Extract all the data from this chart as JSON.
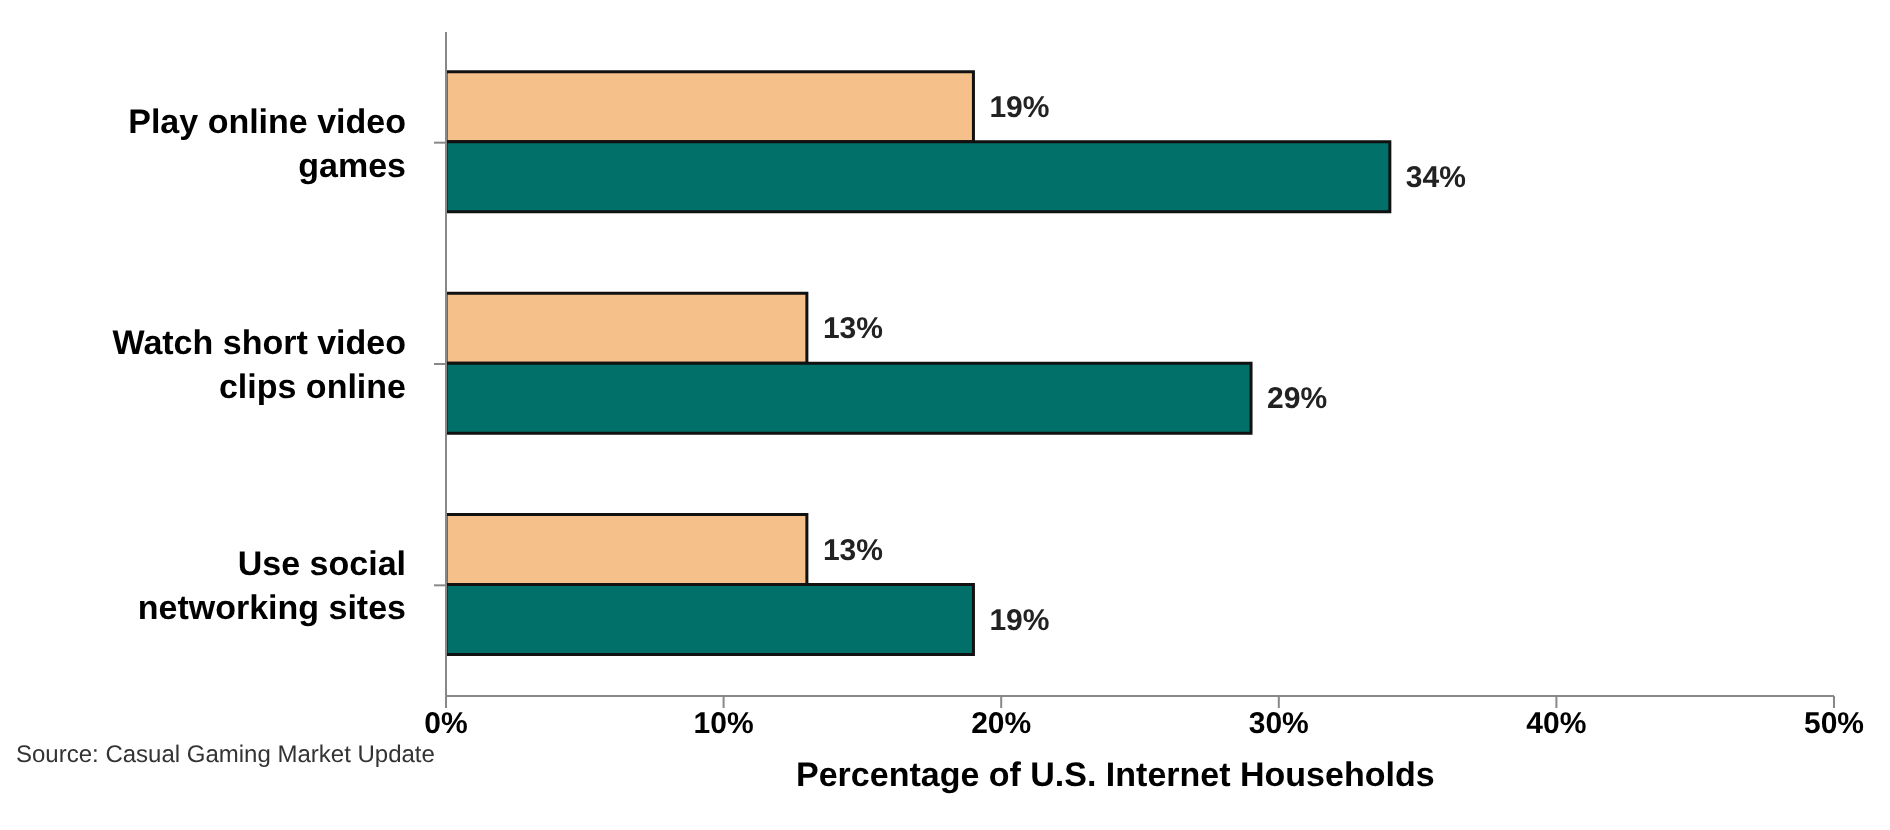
{
  "chart_data": {
    "type": "bar",
    "orientation": "horizontal",
    "categories": [
      "Play online video games",
      "Watch short video clips online",
      "Use social networking sites"
    ],
    "series": [
      {
        "color": "#f5c08a",
        "values": [
          19,
          13,
          13
        ],
        "value_labels": [
          "19%",
          "13%",
          "13%"
        ]
      },
      {
        "color": "#007068",
        "values": [
          34,
          29,
          19
        ],
        "value_labels": [
          "34%",
          "29%",
          "19%"
        ]
      }
    ],
    "xlim": [
      0,
      50
    ],
    "xticks": [
      {
        "value": 0,
        "label": "0%"
      },
      {
        "value": 10,
        "label": "10%"
      },
      {
        "value": 20,
        "label": "20%"
      },
      {
        "value": 30,
        "label": "30%"
      },
      {
        "value": 40,
        "label": "40%"
      },
      {
        "value": 50,
        "label": "50%"
      }
    ],
    "xlabel": "Percentage of U.S. Internet  Households",
    "grid": false,
    "legend": false,
    "annotations": [
      "Source:  Casual Gaming Market Update"
    ]
  }
}
